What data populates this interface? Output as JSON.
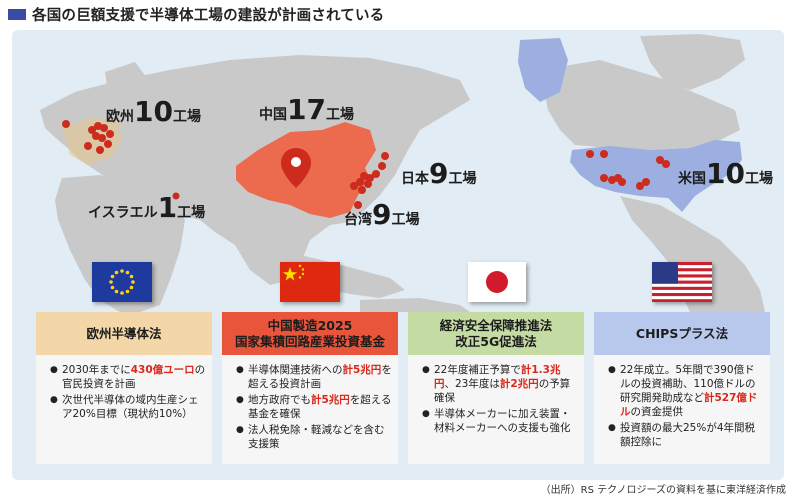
{
  "title": "各国の巨額支援で半導体工場の建設が計画されている",
  "colors": {
    "ocean": "#e2ecf4",
    "land": "#c9c9c9",
    "highlight": "#ec6a4e",
    "usa": "#9dafe0",
    "pin": "#cc2b1d",
    "card_eu": "#f3d7a9",
    "card_cn": "#e9553b",
    "card_jp": "#c4dca3",
    "card_us": "#b8c8ec"
  },
  "map_labels": {
    "europe": {
      "region": "欧州",
      "count": "10",
      "unit": "工場"
    },
    "china": {
      "region": "中国",
      "count": "17",
      "unit": "工場"
    },
    "japan": {
      "region": "日本",
      "count": "9",
      "unit": "工場"
    },
    "taiwan": {
      "region": "台湾",
      "count": "9",
      "unit": "工場"
    },
    "israel": {
      "region": "イスラエル",
      "count": "1",
      "unit": "工場"
    },
    "usa": {
      "region": "米国",
      "count": "10",
      "unit": "工場"
    }
  },
  "cards": {
    "eu": {
      "head1": "欧州半導体法",
      "b1_pre": "2030年までに",
      "b1_red": "430億ユーロ",
      "b1_post": "の官民投資を計画",
      "b2": "次世代半導体の域内生産シェア20%目標（現状約10%）"
    },
    "cn": {
      "head1": "中国製造2025",
      "head2": "国家集積回路産業投資基金",
      "b1_pre": "半導体関連技術への",
      "b1_red": "計5兆円",
      "b1_post": "を超える投資計画",
      "b2_pre": "地方政府でも",
      "b2_red": "計5兆円",
      "b2_post": "を超える基金を確保",
      "b3": "法人税免除・軽減などを含む支援策"
    },
    "jp": {
      "head1": "経済安全保障推進法",
      "head2": "改正5G促進法",
      "b1_pre": "22年度補正予算で",
      "b1_red1": "計1.3兆円",
      "b1_mid": "、23年度は",
      "b1_red2": "計2兆円",
      "b1_post": "の予算確保",
      "b2": "半導体メーカーに加え装置・材料メーカーへの支援も強化"
    },
    "us": {
      "head1": "CHIPSプラス法",
      "b1_pre": "22年成立。5年間で390億ドルの投資補助、110億ドルの研究開発助成など",
      "b1_red": "計527億ドル",
      "b1_post": "の資金提供",
      "b2": "投資額の最大25%が4年間税額控除に"
    }
  },
  "source": "（出所）RS テクノロジーズの資料を基に東洋経済作成"
}
